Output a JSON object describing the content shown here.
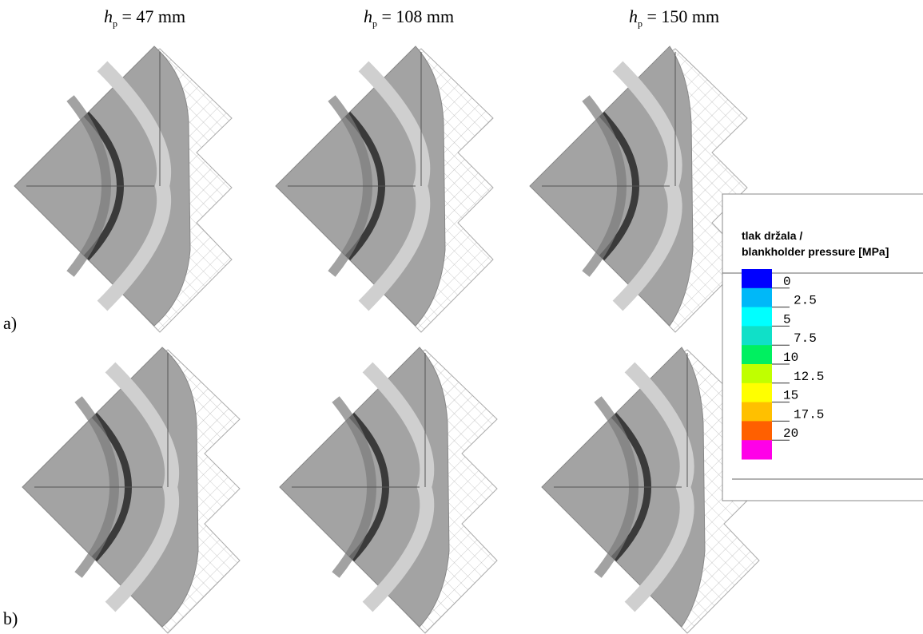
{
  "headers": [
    {
      "symbol": "h",
      "subscript": "p",
      "text": "= 47 mm"
    },
    {
      "symbol": "h",
      "subscript": "p",
      "text": "= 108 mm"
    },
    {
      "symbol": "h",
      "subscript": "p",
      "text": "= 150 mm"
    }
  ],
  "rows": [
    {
      "label": "a)"
    },
    {
      "label": "b)"
    }
  ],
  "legend": {
    "title": [
      "tlak držala /",
      "blankholder pressure [MPa]"
    ],
    "labels": [
      "0",
      "2.5",
      "5",
      "7.5",
      "10",
      "12.5",
      "15",
      "17.5",
      "20"
    ],
    "colors": [
      "#0000ff",
      "#00b8f8",
      "#00ffff",
      "#10e0c8",
      "#00f060",
      "#c0ff00",
      "#ffff00",
      "#ffc000",
      "#ff6000",
      "#ff00e8"
    ]
  }
}
